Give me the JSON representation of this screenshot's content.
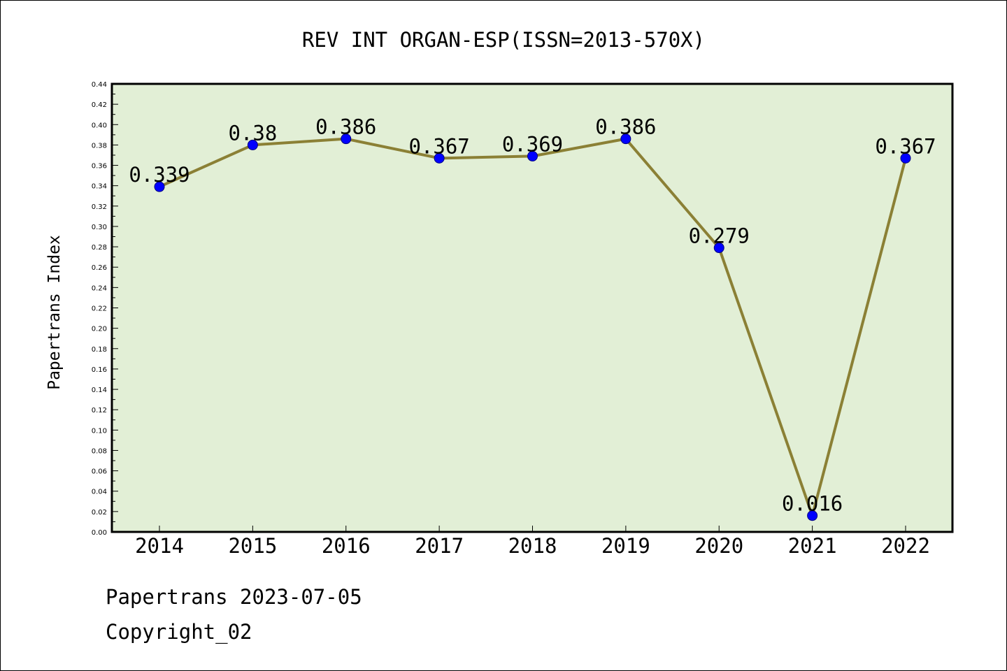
{
  "chart_data": {
    "type": "line",
    "title": "REV INT ORGAN-ESP(ISSN=2013-570X)",
    "xlabel": "",
    "ylabel": "Papertrans Index",
    "categories": [
      "2014",
      "2015",
      "2016",
      "2017",
      "2018",
      "2019",
      "2020",
      "2021",
      "2022"
    ],
    "series": [
      {
        "values": [
          0.339,
          0.38,
          0.386,
          0.367,
          0.369,
          0.386,
          0.279,
          0.016,
          0.367
        ]
      }
    ],
    "data_labels": [
      "0.339",
      "0.38",
      "0.386",
      "0.367",
      "0.369",
      "0.386",
      "0.279",
      "0.016",
      "0.367"
    ],
    "ylim": [
      0,
      0.44
    ],
    "ytick_step": 0.02,
    "yticks": [
      "0.00",
      "0.02",
      "0.04",
      "0.06",
      "0.08",
      "0.10",
      "0.12",
      "0.14",
      "0.16",
      "0.18",
      "0.20",
      "0.22",
      "0.24",
      "0.26",
      "0.28",
      "0.30",
      "0.32",
      "0.34",
      "0.36",
      "0.38",
      "0.40",
      "0.42",
      "0.44"
    ],
    "grid": false,
    "legend": "none",
    "colors": {
      "plot_background": "#e2efd6",
      "line": "#8b8035",
      "marker": "#0000ff",
      "frame": "#000000"
    }
  },
  "footer": {
    "date_text": "Papertrans 2023-07-05",
    "copyright_text": "Copyright_02"
  }
}
